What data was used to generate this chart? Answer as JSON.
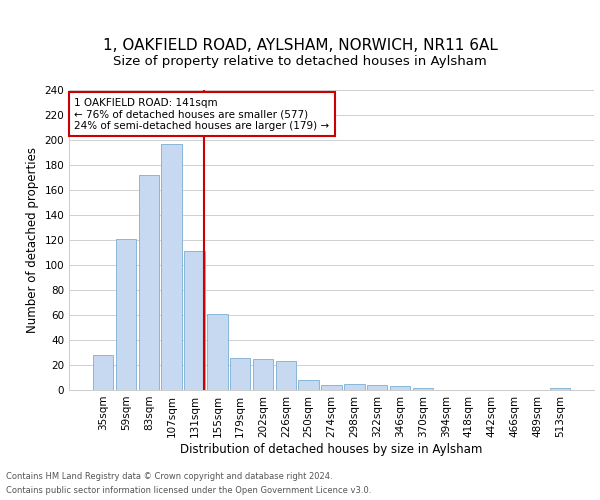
{
  "title1": "1, OAKFIELD ROAD, AYLSHAM, NORWICH, NR11 6AL",
  "title2": "Size of property relative to detached houses in Aylsham",
  "xlabel": "Distribution of detached houses by size in Aylsham",
  "ylabel": "Number of detached properties",
  "categories": [
    "35sqm",
    "59sqm",
    "83sqm",
    "107sqm",
    "131sqm",
    "155sqm",
    "179sqm",
    "202sqm",
    "226sqm",
    "250sqm",
    "274sqm",
    "298sqm",
    "322sqm",
    "346sqm",
    "370sqm",
    "394sqm",
    "418sqm",
    "442sqm",
    "466sqm",
    "489sqm",
    "513sqm"
  ],
  "values": [
    28,
    121,
    172,
    197,
    111,
    61,
    26,
    25,
    23,
    8,
    4,
    5,
    4,
    3,
    2,
    0,
    0,
    0,
    0,
    0,
    2
  ],
  "bar_color": "#c6d9f0",
  "bar_edge_color": "#7bafd4",
  "vline_color": "#cc0000",
  "annotation_text": "1 OAKFIELD ROAD: 141sqm\n← 76% of detached houses are smaller (577)\n24% of semi-detached houses are larger (179) →",
  "annotation_box_color": "#ffffff",
  "annotation_box_edge_color": "#cc0000",
  "ylim": [
    0,
    240
  ],
  "yticks": [
    0,
    20,
    40,
    60,
    80,
    100,
    120,
    140,
    160,
    180,
    200,
    220,
    240
  ],
  "footer1": "Contains HM Land Registry data © Crown copyright and database right 2024.",
  "footer2": "Contains public sector information licensed under the Open Government Licence v3.0.",
  "bg_color": "#ffffff",
  "grid_color": "#d0d0d0",
  "title1_fontsize": 11,
  "title2_fontsize": 9.5,
  "tick_fontsize": 7.5,
  "label_fontsize": 8.5,
  "footer_fontsize": 6.0
}
